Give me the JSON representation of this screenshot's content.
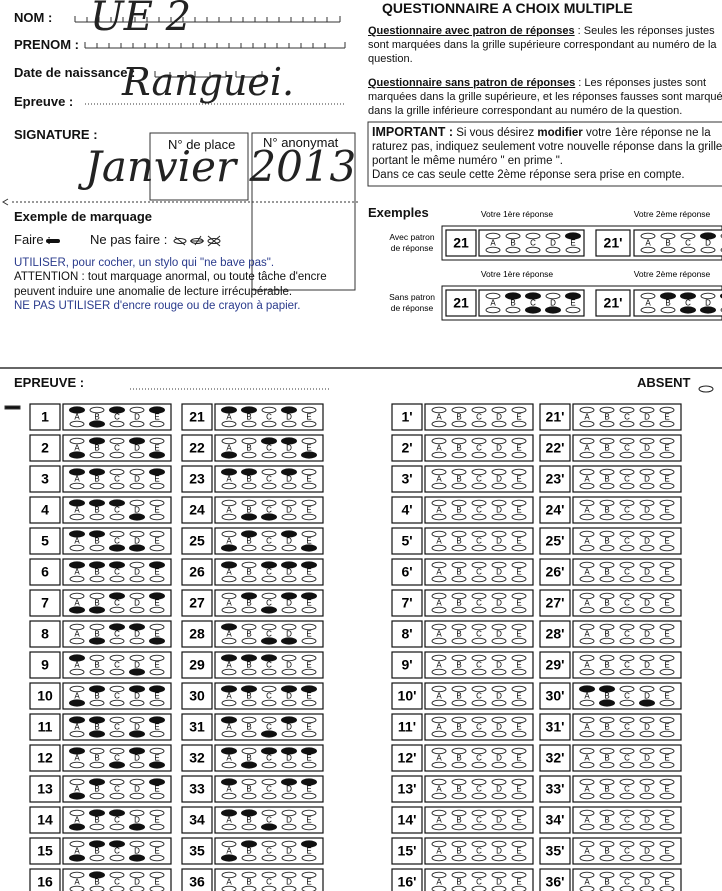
{
  "header": {
    "nom_label": "NOM :",
    "nom_value": "UE 2",
    "prenom_label": "PRENOM :",
    "birth_label": "Date de naissance :",
    "epreuve_label": "Epreuve :",
    "epreuve_value": "Ranguei.",
    "signature_label": "SIGNATURE :",
    "place_label": "N° de place",
    "anonymat_label": "N° anonymat",
    "signature_value": "Janvier 2013"
  },
  "title": "QUESTIONNAIRE A CHOIX MULTIPLE",
  "instructions": {
    "with_heading": "Questionnaire avec patron de réponses",
    "with_text": " : Seules les réponses justes sont marquées dans la grille supérieure correspondant au numéro de la question.",
    "without_heading": "Questionnaire sans patron de réponses",
    "without_text": " : Les réponses justes sont marquées dans la grille supérieure, et les réponses fausses sont marquées dans la grille inférieure correspondant au numéro de la question.",
    "important_heading": "IMPORTANT :",
    "important_text_1": " Si vous désirez ",
    "important_bold": "modifier",
    "important_text_2": " votre 1ère réponse ne la raturez pas, indiquez seulement votre nouvelle réponse dans la grille portant le même numéro \" en prime \".",
    "important_text_3": "Dans ce cas seule cette 2ème réponse sera prise en compte."
  },
  "marking": {
    "title": "Exemple de marquage",
    "do": "Faire :",
    "dont": "Ne pas faire :"
  },
  "notes": [
    "UTILISER, pour cocher, un stylo qui \"ne bave pas\".",
    "ATTENTION : tout marquage anormal, ou toute tâche d'encre peuvent induire une anomalie de lecture irrécupérable.",
    "NE PAS UTILISER d'encre rouge ou de crayon à papier."
  ],
  "examples": {
    "title": "Exemples",
    "first_caption": "Votre 1ère réponse",
    "second_caption": "Votre 2ème réponse",
    "first_number": "21",
    "second_number": "21'",
    "rows": [
      {
        "label": "Avec patron de réponse",
        "first": {
          "top": [
            "E"
          ],
          "bottom": []
        },
        "second": {
          "top": [
            "D"
          ],
          "bottom": []
        }
      },
      {
        "label": "Sans patron de réponse",
        "first": {
          "top": [
            "B",
            "C",
            "E"
          ],
          "bottom": [
            "C",
            "D"
          ]
        },
        "second": {
          "top": [
            "B",
            "C",
            "E"
          ],
          "bottom": [
            "C",
            "D"
          ]
        }
      }
    ]
  },
  "section": {
    "epreuve_label": "EPREUVE :",
    "absent_label": "ABSENT"
  },
  "choices": [
    "A",
    "B",
    "C",
    "D",
    "E"
  ],
  "grid": [
    [
      {
        "number": "1",
        "top": [
          "A",
          "C",
          "E"
        ],
        "bottom": [
          "B"
        ]
      },
      {
        "number": "2",
        "top": [
          "B",
          "D"
        ],
        "bottom": [
          "A",
          "E"
        ]
      },
      {
        "number": "3",
        "top": [
          "A",
          "B",
          "E"
        ],
        "bottom": []
      },
      {
        "number": "4",
        "top": [
          "A",
          "B",
          "C"
        ],
        "bottom": [
          "D"
        ]
      },
      {
        "number": "5",
        "top": [
          "A",
          "B"
        ],
        "bottom": [
          "C",
          "D"
        ]
      },
      {
        "number": "6",
        "top": [
          "A",
          "B",
          "C",
          "E"
        ],
        "bottom": []
      },
      {
        "number": "7",
        "top": [
          "C",
          "E"
        ],
        "bottom": [
          "A",
          "B"
        ]
      },
      {
        "number": "8",
        "top": [
          "C",
          "D"
        ],
        "bottom": [
          "B",
          "E"
        ]
      },
      {
        "number": "9",
        "top": [
          "A"
        ],
        "bottom": [
          "D"
        ]
      },
      {
        "number": "10",
        "top": [
          "B",
          "D",
          "E"
        ],
        "bottom": [
          "A"
        ]
      },
      {
        "number": "11",
        "top": [
          "A",
          "B",
          "E"
        ],
        "bottom": [
          "B",
          "D"
        ]
      },
      {
        "number": "12",
        "top": [
          "A",
          "D"
        ],
        "bottom": [
          "C",
          "E"
        ]
      },
      {
        "number": "13",
        "top": [
          "B",
          "E"
        ],
        "bottom": [
          "A"
        ]
      },
      {
        "number": "14",
        "top": [
          "B",
          "C"
        ],
        "bottom": [
          "A",
          "D"
        ]
      },
      {
        "number": "15",
        "top": [
          "B",
          "C"
        ],
        "bottom": [
          "A",
          "D"
        ]
      },
      {
        "number": "16",
        "top": [
          "B"
        ],
        "bottom": []
      }
    ],
    [
      {
        "number": "21",
        "top": [
          "A",
          "B",
          "D"
        ],
        "bottom": []
      },
      {
        "number": "22",
        "top": [
          "C",
          "D"
        ],
        "bottom": [
          "A",
          "E"
        ]
      },
      {
        "number": "23",
        "top": [
          "A",
          "B",
          "D"
        ],
        "bottom": []
      },
      {
        "number": "24",
        "top": [],
        "bottom": [
          "B",
          "C"
        ]
      },
      {
        "number": "25",
        "top": [
          "B",
          "D"
        ],
        "bottom": [
          "A",
          "E"
        ]
      },
      {
        "number": "26",
        "top": [
          "A",
          "C",
          "D",
          "E"
        ],
        "bottom": []
      },
      {
        "number": "27",
        "top": [
          "B",
          "D",
          "E"
        ],
        "bottom": [
          "C"
        ]
      },
      {
        "number": "28",
        "top": [
          "A"
        ],
        "bottom": [
          "C",
          "D"
        ]
      },
      {
        "number": "29",
        "top": [
          "A",
          "B",
          "C"
        ],
        "bottom": []
      },
      {
        "number": "30",
        "top": [
          "A",
          "B",
          "D",
          "E"
        ],
        "bottom": []
      },
      {
        "number": "31",
        "top": [
          "A",
          "D"
        ],
        "bottom": [
          "C"
        ]
      },
      {
        "number": "32",
        "top": [
          "A",
          "C",
          "D",
          "E"
        ],
        "bottom": [
          "B"
        ]
      },
      {
        "number": "33",
        "top": [
          "A",
          "D",
          "E"
        ],
        "bottom": []
      },
      {
        "number": "34",
        "top": [
          "A",
          "B"
        ],
        "bottom": [
          "C"
        ]
      },
      {
        "number": "35",
        "top": [
          "B",
          "E"
        ],
        "bottom": [
          "A"
        ]
      },
      {
        "number": "36",
        "top": [],
        "bottom": []
      }
    ],
    [
      {
        "number": "1'",
        "top": [],
        "bottom": []
      },
      {
        "number": "2'",
        "top": [],
        "bottom": []
      },
      {
        "number": "3'",
        "top": [],
        "bottom": []
      },
      {
        "number": "4'",
        "top": [],
        "bottom": []
      },
      {
        "number": "5'",
        "top": [],
        "bottom": []
      },
      {
        "number": "6'",
        "top": [],
        "bottom": []
      },
      {
        "number": "7'",
        "top": [],
        "bottom": []
      },
      {
        "number": "8'",
        "top": [],
        "bottom": []
      },
      {
        "number": "9'",
        "top": [],
        "bottom": []
      },
      {
        "number": "10'",
        "top": [],
        "bottom": []
      },
      {
        "number": "11'",
        "top": [],
        "bottom": []
      },
      {
        "number": "12'",
        "top": [],
        "bottom": []
      },
      {
        "number": "13'",
        "top": [],
        "bottom": []
      },
      {
        "number": "14'",
        "top": [],
        "bottom": []
      },
      {
        "number": "15'",
        "top": [],
        "bottom": []
      },
      {
        "number": "16'",
        "top": [],
        "bottom": []
      }
    ],
    [
      {
        "number": "21'",
        "top": [],
        "bottom": []
      },
      {
        "number": "22'",
        "top": [],
        "bottom": []
      },
      {
        "number": "23'",
        "top": [],
        "bottom": []
      },
      {
        "number": "24'",
        "top": [],
        "bottom": []
      },
      {
        "number": "25'",
        "top": [],
        "bottom": []
      },
      {
        "number": "26'",
        "top": [],
        "bottom": []
      },
      {
        "number": "27'",
        "top": [],
        "bottom": []
      },
      {
        "number": "28'",
        "top": [],
        "bottom": []
      },
      {
        "number": "29'",
        "top": [],
        "bottom": []
      },
      {
        "number": "30'",
        "top": [
          "A",
          "B"
        ],
        "bottom": [
          "B",
          "D"
        ]
      },
      {
        "number": "31'",
        "top": [],
        "bottom": []
      },
      {
        "number": "32'",
        "top": [],
        "bottom": []
      },
      {
        "number": "33'",
        "top": [],
        "bottom": []
      },
      {
        "number": "34'",
        "top": [],
        "bottom": []
      },
      {
        "number": "35'",
        "top": [],
        "bottom": []
      },
      {
        "number": "36'",
        "top": [],
        "bottom": []
      }
    ]
  ]
}
